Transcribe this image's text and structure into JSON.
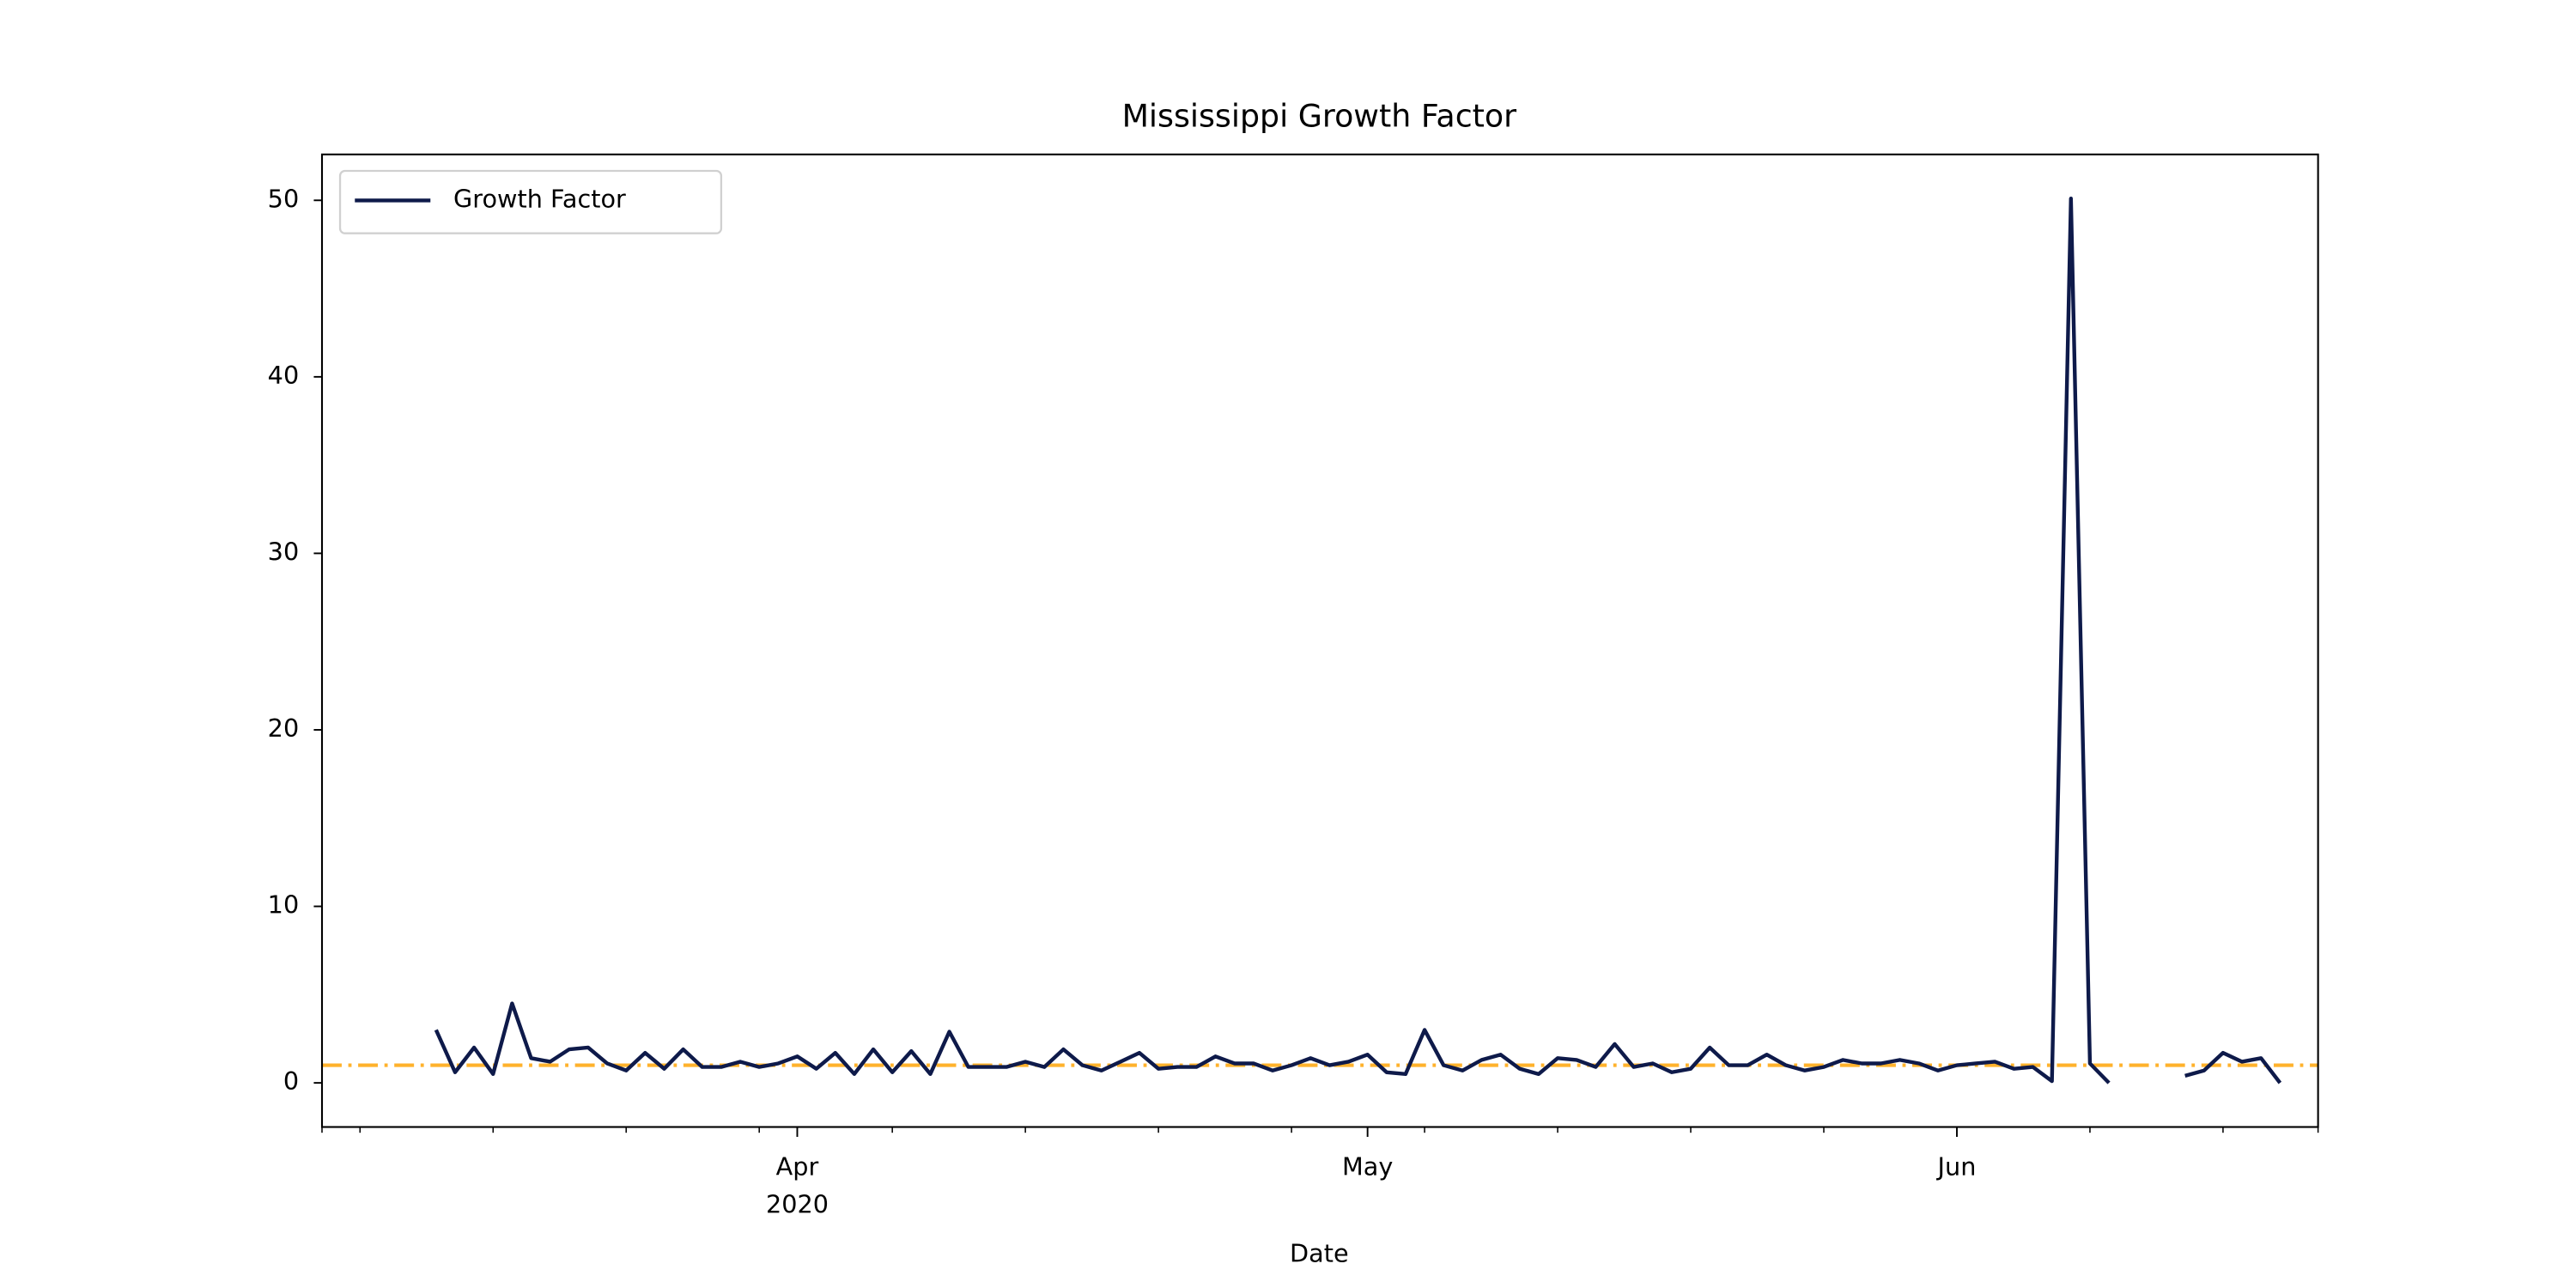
{
  "chart_data": {
    "type": "line",
    "title": "Mississippi Growth Factor",
    "x_label": "Date",
    "x": [
      "2020-03-13",
      "2020-03-14",
      "2020-03-15",
      "2020-03-16",
      "2020-03-17",
      "2020-03-18",
      "2020-03-19",
      "2020-03-20",
      "2020-03-21",
      "2020-03-22",
      "2020-03-23",
      "2020-03-24",
      "2020-03-25",
      "2020-03-26",
      "2020-03-27",
      "2020-03-28",
      "2020-03-29",
      "2020-03-30",
      "2020-03-31",
      "2020-04-01",
      "2020-04-02",
      "2020-04-03",
      "2020-04-04",
      "2020-04-05",
      "2020-04-06",
      "2020-04-07",
      "2020-04-08",
      "2020-04-09",
      "2020-04-10",
      "2020-04-11",
      "2020-04-12",
      "2020-04-13",
      "2020-04-14",
      "2020-04-15",
      "2020-04-16",
      "2020-04-17",
      "2020-04-18",
      "2020-04-19",
      "2020-04-20",
      "2020-04-21",
      "2020-04-22",
      "2020-04-23",
      "2020-04-24",
      "2020-04-25",
      "2020-04-26",
      "2020-04-27",
      "2020-04-28",
      "2020-04-29",
      "2020-04-30",
      "2020-05-01",
      "2020-05-02",
      "2020-05-03",
      "2020-05-04",
      "2020-05-05",
      "2020-05-06",
      "2020-05-07",
      "2020-05-08",
      "2020-05-09",
      "2020-05-10",
      "2020-05-11",
      "2020-05-12",
      "2020-05-13",
      "2020-05-14",
      "2020-05-15",
      "2020-05-16",
      "2020-05-17",
      "2020-05-18",
      "2020-05-19",
      "2020-05-20",
      "2020-05-21",
      "2020-05-22",
      "2020-05-23",
      "2020-05-24",
      "2020-05-25",
      "2020-05-26",
      "2020-05-27",
      "2020-05-28",
      "2020-05-29",
      "2020-05-30",
      "2020-05-31",
      "2020-06-01",
      "2020-06-02",
      "2020-06-03",
      "2020-06-04",
      "2020-06-05",
      "2020-06-06",
      "2020-06-07",
      "2020-06-08",
      "2020-06-09",
      "2020-06-10",
      "2020-06-11",
      "2020-06-12",
      "2020-06-13",
      "2020-06-14",
      "2020-06-15",
      "2020-06-16",
      "2020-06-17",
      "2020-06-18"
    ],
    "series": [
      {
        "name": "Growth Factor",
        "color": "#0e1a4a",
        "values": [
          3.0,
          0.6,
          2.0,
          0.5,
          4.5,
          1.4,
          1.2,
          1.9,
          2.0,
          1.1,
          0.7,
          1.7,
          0.8,
          1.9,
          0.9,
          0.9,
          1.2,
          0.9,
          1.1,
          1.5,
          0.8,
          1.7,
          0.5,
          1.9,
          0.6,
          1.8,
          0.5,
          2.9,
          0.9,
          0.9,
          0.9,
          1.2,
          0.9,
          1.9,
          1.0,
          0.7,
          1.2,
          1.7,
          0.8,
          0.9,
          0.9,
          1.5,
          1.1,
          1.1,
          0.7,
          1.0,
          1.4,
          1.0,
          1.2,
          1.6,
          0.6,
          0.5,
          3.0,
          1.0,
          0.7,
          1.3,
          1.6,
          0.8,
          0.5,
          1.4,
          1.3,
          0.9,
          2.2,
          0.9,
          1.1,
          0.6,
          0.8,
          2.0,
          1.0,
          1.0,
          1.6,
          1.0,
          0.7,
          0.9,
          1.3,
          1.1,
          1.1,
          1.3,
          1.1,
          0.7,
          1.0,
          1.1,
          1.2,
          0.8,
          0.9,
          0.1,
          50.1,
          1.1,
          0.0,
          null,
          null,
          null,
          0.4,
          0.7,
          1.7,
          1.2,
          1.4,
          0.0
        ]
      }
    ],
    "hline": {
      "value": 1,
      "color": "#ffb22c"
    },
    "xlim": [
      "2020-03-07",
      "2020-06-20"
    ],
    "xticks": [
      {
        "value": "2020-04-01",
        "label": "Apr",
        "sublabel": "2020"
      },
      {
        "value": "2020-05-01",
        "label": "May"
      },
      {
        "value": "2020-06-01",
        "label": "Jun"
      }
    ],
    "xminorticks": [
      "2020-03-09",
      "2020-03-16",
      "2020-03-23",
      "2020-03-30",
      "2020-04-06",
      "2020-04-13",
      "2020-04-20",
      "2020-04-27",
      "2020-05-04",
      "2020-05-11",
      "2020-05-18",
      "2020-05-25",
      "2020-06-08",
      "2020-06-15"
    ],
    "ylim": [
      -2.5,
      52.6
    ],
    "yticks": [
      0,
      10,
      20,
      30,
      40,
      50
    ],
    "grid": false,
    "legend": "upper left"
  }
}
